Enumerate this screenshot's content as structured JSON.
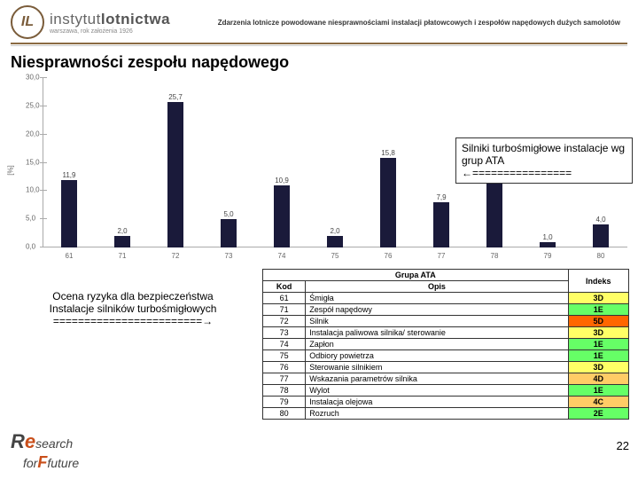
{
  "header": {
    "logo_mark": "IL",
    "logo_name_1": "instytut",
    "logo_name_2": "lotnictwa",
    "logo_sub": "warszawa, rok założenia 1926",
    "right_text": "Zdarzenia lotnicze powodowane niesprawnościami instalacji płatowcowych i zespołów napędowych dużych samolotów"
  },
  "title": "Niesprawności zespołu napędowego",
  "chart": {
    "type": "bar",
    "ylabel": "[%]",
    "ylim": [
      0,
      30
    ],
    "ytick_step": 5,
    "yticks": [
      "0,0",
      "5,0",
      "10,0",
      "15,0",
      "20,0",
      "25,0",
      "30,0"
    ],
    "categories": [
      "61",
      "71",
      "72",
      "73",
      "74",
      "75",
      "76",
      "77",
      "78",
      "79",
      "80"
    ],
    "values": [
      11.9,
      2.0,
      25.7,
      5.0,
      10.9,
      2.0,
      15.8,
      7.9,
      15.8,
      1.0,
      4.0
    ],
    "labels": [
      "11,9",
      "2,0",
      "25,7",
      "5,0",
      "10,9",
      "2,0",
      "15,8",
      "7,9",
      "15,8",
      "1,0",
      "4,0"
    ],
    "bar_color": "#1a1a3a",
    "background_color": "#ffffff"
  },
  "annotation": {
    "line1": "Silniki turbośmigłowe instalacje wg grup ATA",
    "line2": "←================"
  },
  "lower_left": {
    "line1": "Ocena ryzyka dla  bezpieczeństwa",
    "line2": "Instalacje silników turbośmigłowych",
    "line3": "========================→"
  },
  "ata_table": {
    "header": [
      "Kod",
      "Opis",
      "Indeks"
    ],
    "group_title": "Grupa ATA",
    "rows": [
      {
        "kod": "61",
        "opis": "Śmigła",
        "idx": "3D",
        "cls": "idx-3D"
      },
      {
        "kod": "71",
        "opis": "Zespół napędowy",
        "idx": "1E",
        "cls": "idx-1E"
      },
      {
        "kod": "72",
        "opis": "Silnik",
        "idx": "5D",
        "cls": "idx-5D"
      },
      {
        "kod": "73",
        "opis": "Instalacja paliwowa silnika/ sterowanie",
        "idx": "3D",
        "cls": "idx-3D"
      },
      {
        "kod": "74",
        "opis": "Zapłon",
        "idx": "1E",
        "cls": "idx-1E"
      },
      {
        "kod": "75",
        "opis": "Odbiory powietrza",
        "idx": "1E",
        "cls": "idx-1E"
      },
      {
        "kod": "76",
        "opis": "Sterowanie silnikiem",
        "idx": "3D",
        "cls": "idx-3D"
      },
      {
        "kod": "77",
        "opis": "Wskazania parametrów silnika",
        "idx": "4D",
        "cls": "idx-4D"
      },
      {
        "kod": "78",
        "opis": "Wylot",
        "idx": "1E",
        "cls": "idx-1E"
      },
      {
        "kod": "79",
        "opis": "Instalacja olejowa",
        "idx": "4C",
        "cls": "idx-4C"
      },
      {
        "kod": "80",
        "opis": "Rozruch",
        "idx": "2E",
        "cls": "idx-2E"
      }
    ]
  },
  "logo2": {
    "e": "e",
    "r1": "search",
    "r2": "for",
    "r3": "future",
    "f": "F"
  },
  "page_number": "22"
}
